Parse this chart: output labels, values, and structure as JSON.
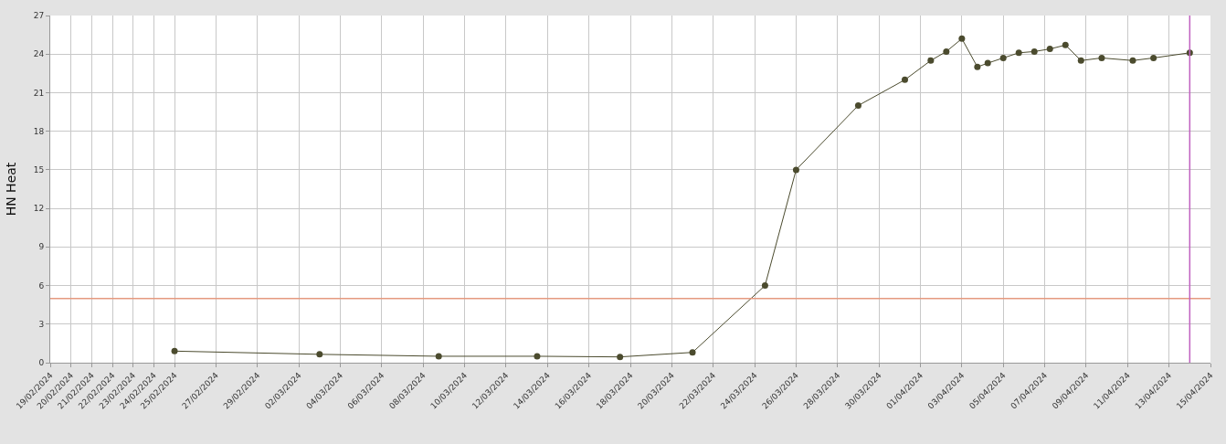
{
  "chart_data": {
    "type": "line",
    "ylabel": "HN Heat",
    "x": [
      "2024-02-25",
      "2024-03-03",
      "2024-03-08T18:00",
      "2024-03-13T12:00",
      "2024-03-17T12:00",
      "2024-03-21",
      "2024-03-24T12:00",
      "2024-03-26",
      "2024-03-29",
      "2024-03-31T06:00",
      "2024-04-01T12:00",
      "2024-04-02T06:00",
      "2024-04-03",
      "2024-04-03T18:00",
      "2024-04-04T06:00",
      "2024-04-05",
      "2024-04-05T18:00",
      "2024-04-06T12:00",
      "2024-04-07T06:00",
      "2024-04-08",
      "2024-04-08T18:00",
      "2024-04-09T18:00",
      "2024-04-11T06:00",
      "2024-04-12T06:00",
      "2024-04-14"
    ],
    "series": [
      {
        "color": "#4b4b2e",
        "values": [
          0.9,
          0.65,
          0.5,
          0.5,
          0.45,
          0.8,
          6.0,
          15.0,
          20.0,
          22.0,
          23.5,
          24.2,
          25.2,
          23.0,
          23.3,
          23.7,
          24.1,
          24.2,
          24.4,
          24.7,
          23.5,
          23.7,
          23.5,
          23.7,
          24.1
        ]
      }
    ],
    "ylim": [
      0,
      27
    ],
    "yticks": [
      0,
      3,
      6,
      9,
      12,
      15,
      18,
      21,
      24,
      27
    ],
    "xlim": [
      "2024-02-19",
      "2024-04-15"
    ],
    "xticks": [
      {
        "value": "2024-02-19",
        "label": "19/02/2024"
      },
      {
        "value": "2024-02-20",
        "label": "20/02/2024"
      },
      {
        "value": "2024-02-21",
        "label": "21/02/2024"
      },
      {
        "value": "2024-02-22",
        "label": "22/02/2024"
      },
      {
        "value": "2024-02-23",
        "label": "23/02/2024"
      },
      {
        "value": "2024-02-24",
        "label": "24/02/2024"
      },
      {
        "value": "2024-02-25",
        "label": "25/02/2024"
      },
      {
        "value": "2024-02-27",
        "label": "27/02/2024"
      },
      {
        "value": "2024-02-29",
        "label": "29/02/2024"
      },
      {
        "value": "2024-03-02",
        "label": "02/03/2024"
      },
      {
        "value": "2024-03-04",
        "label": "04/03/2024"
      },
      {
        "value": "2024-03-06",
        "label": "06/03/2024"
      },
      {
        "value": "2024-03-08",
        "label": "08/03/2024"
      },
      {
        "value": "2024-03-10",
        "label": "10/03/2024"
      },
      {
        "value": "2024-03-12",
        "label": "12/03/2024"
      },
      {
        "value": "2024-03-14",
        "label": "14/03/2024"
      },
      {
        "value": "2024-03-16",
        "label": "16/03/2024"
      },
      {
        "value": "2024-03-18",
        "label": "18/03/2024"
      },
      {
        "value": "2024-03-20",
        "label": "20/03/2024"
      },
      {
        "value": "2024-03-22",
        "label": "22/03/2024"
      },
      {
        "value": "2024-03-24",
        "label": "24/03/2024"
      },
      {
        "value": "2024-03-26",
        "label": "26/03/2024"
      },
      {
        "value": "2024-03-28",
        "label": "28/03/2024"
      },
      {
        "value": "2024-03-30",
        "label": "30/03/2024"
      },
      {
        "value": "2024-04-01",
        "label": "01/04/2024"
      },
      {
        "value": "2024-04-03",
        "label": "03/04/2024"
      },
      {
        "value": "2024-04-05",
        "label": "05/04/2024"
      },
      {
        "value": "2024-04-07",
        "label": "07/04/2024"
      },
      {
        "value": "2024-04-09",
        "label": "09/04/2024"
      },
      {
        "value": "2024-04-11",
        "label": "11/04/2024"
      },
      {
        "value": "2024-04-13",
        "label": "13/04/2024"
      },
      {
        "value": "2024-04-15",
        "label": "15/04/2024"
      }
    ],
    "ref_lines": [
      {
        "axis": "y",
        "value": 5,
        "color": "#e59a80"
      },
      {
        "axis": "x",
        "value": "2024-04-14",
        "color": "#c060c0"
      }
    ],
    "grid": true,
    "marker": "circle",
    "line_style": "solid",
    "legend": false
  }
}
